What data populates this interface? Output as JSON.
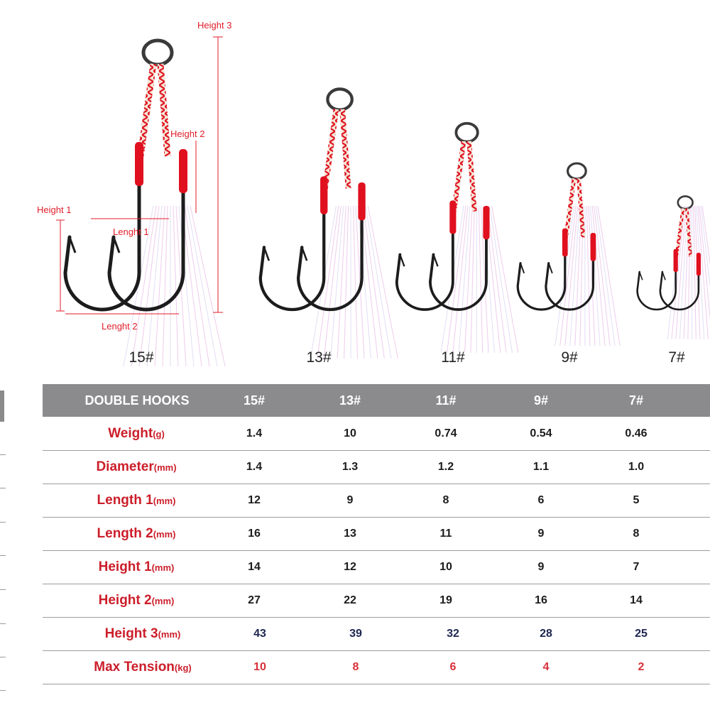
{
  "diagram": {
    "dimension_labels": {
      "height_3": "Height 3",
      "height_2": "Height 2",
      "height_1": "Height 1",
      "length_1": "Lenght 1",
      "length_2": "Lenght 2"
    },
    "sizes": [
      "15#",
      "13#",
      "11#",
      "9#",
      "7#"
    ],
    "colors": {
      "hook_metal": "#1c1c1c",
      "thread": "#e0101f",
      "rope_white": "#f2e4d6",
      "flash": "#e7b7e4",
      "dimension": "#e11d2a"
    }
  },
  "table": {
    "header_title": "DOUBLE HOOKS",
    "columns": [
      "15#",
      "13#",
      "11#",
      "9#",
      "7#"
    ],
    "rows": [
      {
        "label": "Weight",
        "unit": "(g)",
        "values": [
          "1.4",
          "10",
          "0.74",
          "0.54",
          "0.46"
        ]
      },
      {
        "label": "Diameter",
        "unit": "(mm)",
        "values": [
          "1.4",
          "1.3",
          "1.2",
          "1.1",
          "1.0"
        ]
      },
      {
        "label": "Length 1",
        "unit": "(mm)",
        "values": [
          "12",
          "9",
          "8",
          "6",
          "5"
        ]
      },
      {
        "label": "Length 2",
        "unit": "(mm)",
        "values": [
          "16",
          "13",
          "11",
          "9",
          "8"
        ]
      },
      {
        "label": "Height 1",
        "unit": "(mm)",
        "values": [
          "14",
          "12",
          "10",
          "9",
          "7"
        ]
      },
      {
        "label": "Height 2",
        "unit": "(mm)",
        "values": [
          "27",
          "22",
          "19",
          "16",
          "14"
        ]
      },
      {
        "label": "Height 3",
        "unit": "(mm)",
        "values": [
          "43",
          "39",
          "32",
          "28",
          "25"
        ]
      },
      {
        "label": "Max Tension",
        "unit": "(kg)",
        "values": [
          "10",
          "8",
          "6",
          "4",
          "2"
        ]
      }
    ],
    "colors": {
      "header_bg": "#8b8b8e",
      "label": "#cc1e2a",
      "value": "#1c1c1c",
      "tension_value": "#d9303a"
    }
  }
}
